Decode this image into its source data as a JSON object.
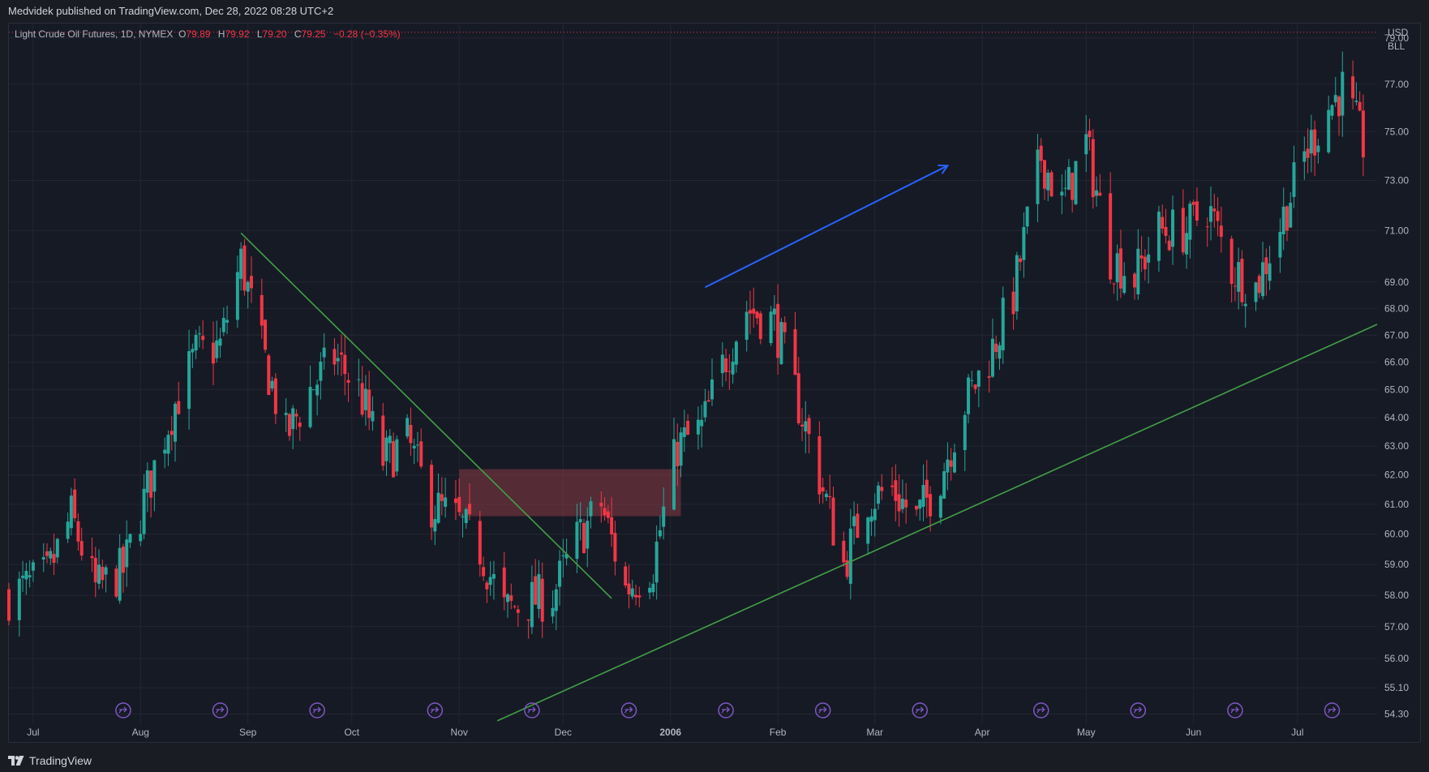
{
  "header": {
    "published": "Medvidek published on TradingView.com, Dec 28, 2022 08:28 UTC+2"
  },
  "legend": {
    "symbol": "Light Crude Oil Futures, 1D, NYMEX",
    "o_label": "O",
    "o_value": "79.89",
    "h_label": "H",
    "h_value": "79.92",
    "l_label": "L",
    "l_value": "79.20",
    "c_label": "C",
    "c_value": "79.25",
    "change": "−0.28 (−0.35%)"
  },
  "price_axis": {
    "currency": "USD",
    "unit": "BLL",
    "labels": [
      "79.00",
      "77.00",
      "75.00",
      "73.00",
      "71.00",
      "69.00",
      "68.00",
      "67.00",
      "66.00",
      "65.00",
      "64.00",
      "63.00",
      "62.00",
      "61.00",
      "60.00",
      "59.00",
      "58.00",
      "57.00",
      "56.00",
      "55.10",
      "54.30"
    ]
  },
  "time_axis": {
    "labels": [
      "Jul",
      "Aug",
      "Sep",
      "Oct",
      "Nov",
      "Dec",
      "2006",
      "Feb",
      "Mar",
      "Apr",
      "May",
      "Jun",
      "Jul"
    ],
    "bold_label": "2006"
  },
  "footer": {
    "brand": "TradingView"
  },
  "colors": {
    "background": "#161a25",
    "up": "#26a69a",
    "down": "#f23645",
    "trendline": "#43a047",
    "arrow": "#2962ff",
    "rectangle": "#8a3a44",
    "event_marker": "#7e57c2",
    "last_price_line": "#f23645"
  },
  "chart_data": {
    "type": "candlestick",
    "title": "Light Crude Oil Futures, 1D, NYMEX",
    "y_scale": "log",
    "ylim": [
      54.0,
      79.6
    ],
    "xlim": [
      "2005-06-24",
      "2006-07-24"
    ],
    "anchors": [
      {
        "date": "2005-06-24",
        "price": 58.0
      },
      {
        "date": "2005-07-05",
        "price": 58.6
      },
      {
        "date": "2005-07-12",
        "price": 60.6
      },
      {
        "date": "2005-07-19",
        "price": 58.2
      },
      {
        "date": "2005-07-27",
        "price": 58.8
      },
      {
        "date": "2005-08-03",
        "price": 61.5
      },
      {
        "date": "2005-08-10",
        "price": 64.2
      },
      {
        "date": "2005-08-17",
        "price": 66.3
      },
      {
        "date": "2005-08-24",
        "price": 66.6
      },
      {
        "date": "2005-08-30",
        "price": 69.8
      },
      {
        "date": "2005-09-05",
        "price": 66.5
      },
      {
        "date": "2005-09-12",
        "price": 63.3
      },
      {
        "date": "2005-09-19",
        "price": 65.0
      },
      {
        "date": "2005-09-26",
        "price": 66.2
      },
      {
        "date": "2005-10-03",
        "price": 65.0
      },
      {
        "date": "2005-10-10",
        "price": 62.5
      },
      {
        "date": "2005-10-17",
        "price": 63.2
      },
      {
        "date": "2005-10-24",
        "price": 61.0
      },
      {
        "date": "2005-10-31",
        "price": 60.5
      },
      {
        "date": "2005-11-07",
        "price": 59.5
      },
      {
        "date": "2005-11-14",
        "price": 57.5
      },
      {
        "date": "2005-11-21",
        "price": 57.8
      },
      {
        "date": "2005-11-28",
        "price": 58.0
      },
      {
        "date": "2005-12-05",
        "price": 59.8
      },
      {
        "date": "2005-12-12",
        "price": 61.0
      },
      {
        "date": "2005-12-19",
        "price": 58.2
      },
      {
        "date": "2005-12-27",
        "price": 59.0
      },
      {
        "date": "2006-01-03",
        "price": 63.0
      },
      {
        "date": "2006-01-10",
        "price": 63.6
      },
      {
        "date": "2006-01-17",
        "price": 66.2
      },
      {
        "date": "2006-01-23",
        "price": 68.0
      },
      {
        "date": "2006-01-31",
        "price": 67.5
      },
      {
        "date": "2006-02-07",
        "price": 64.5
      },
      {
        "date": "2006-02-14",
        "price": 61.5
      },
      {
        "date": "2006-02-20",
        "price": 59.0
      },
      {
        "date": "2006-02-27",
        "price": 61.2
      },
      {
        "date": "2006-03-06",
        "price": 61.5
      },
      {
        "date": "2006-03-13",
        "price": 60.5
      },
      {
        "date": "2006-03-20",
        "price": 62.0
      },
      {
        "date": "2006-03-27",
        "price": 64.5
      },
      {
        "date": "2006-04-03",
        "price": 66.2
      },
      {
        "date": "2006-04-10",
        "price": 68.5
      },
      {
        "date": "2006-04-18",
        "price": 74.0
      },
      {
        "date": "2006-04-24",
        "price": 72.0
      },
      {
        "date": "2006-05-01",
        "price": 74.5
      },
      {
        "date": "2006-05-08",
        "price": 70.0
      },
      {
        "date": "2006-05-15",
        "price": 69.2
      },
      {
        "date": "2006-05-22",
        "price": 71.0
      },
      {
        "date": "2006-05-30",
        "price": 71.0
      },
      {
        "date": "2006-06-05",
        "price": 72.0
      },
      {
        "date": "2006-06-12",
        "price": 69.5
      },
      {
        "date": "2006-06-19",
        "price": 68.8
      },
      {
        "date": "2006-06-26",
        "price": 71.2
      },
      {
        "date": "2006-07-03",
        "price": 74.0
      },
      {
        "date": "2006-07-10",
        "price": 76.0
      },
      {
        "date": "2006-07-14",
        "price": 76.8
      },
      {
        "date": "2006-07-20",
        "price": 74.5
      }
    ],
    "trendlines": [
      {
        "name": "falling",
        "from": {
          "date": "2005-08-30",
          "price": 70.9
        },
        "to": {
          "date": "2005-12-15",
          "price": 57.9
        }
      },
      {
        "name": "rising",
        "from": {
          "date": "2005-11-12",
          "price": 54.1
        },
        "to": {
          "date": "2006-07-24",
          "price": 67.4
        }
      }
    ],
    "arrow": {
      "from": {
        "date": "2006-01-11",
        "price": 68.8
      },
      "to": {
        "date": "2006-03-22",
        "price": 73.6
      }
    },
    "zone": {
      "from_date": "2005-11-01",
      "to_date": "2006-01-04",
      "top": 62.2,
      "bottom": 60.6
    },
    "last_price": 79.25,
    "event_markers": [
      "2005-07-27",
      "2005-08-24",
      "2005-09-21",
      "2005-10-25",
      "2005-11-22",
      "2005-12-20",
      "2006-01-17",
      "2006-02-14",
      "2006-03-14",
      "2006-04-18",
      "2006-05-16",
      "2006-06-13",
      "2006-07-11"
    ]
  }
}
